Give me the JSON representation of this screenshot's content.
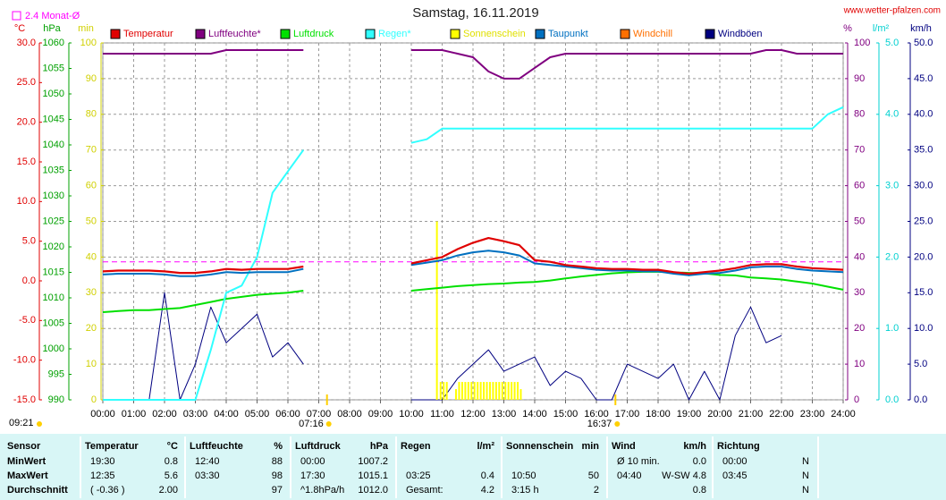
{
  "chart_data": {
    "type": "line",
    "title": "Samstag, 16.11.2019",
    "source": "www.wetter-pfalzen.com",
    "grid": true,
    "monthly_average": {
      "label": "2.4 Monat-Ø",
      "value": 2.4,
      "color": "#ff00ff"
    },
    "update": "09:21",
    "events": [
      {
        "x": 7.2667,
        "label": "07:16"
      },
      {
        "x": 16.6167,
        "label": "16:37"
      }
    ],
    "xlim": [
      0,
      24
    ],
    "xticks": [
      {
        "value": 0,
        "label": "00:00"
      },
      {
        "value": 1,
        "label": "01:00"
      },
      {
        "value": 2,
        "label": "02:00"
      },
      {
        "value": 3,
        "label": "03:00"
      },
      {
        "value": 4,
        "label": "04:00"
      },
      {
        "value": 5,
        "label": "05:00"
      },
      {
        "value": 6,
        "label": "06:00"
      },
      {
        "value": 7,
        "label": "07:00"
      },
      {
        "value": 8,
        "label": "08:00"
      },
      {
        "value": 9,
        "label": "09:00"
      },
      {
        "value": 10,
        "label": "10:00"
      },
      {
        "value": 11,
        "label": "11:00"
      },
      {
        "value": 12,
        "label": "12:00"
      },
      {
        "value": 13,
        "label": "13:00"
      },
      {
        "value": 14,
        "label": "14:00"
      },
      {
        "value": 15,
        "label": "15:00"
      },
      {
        "value": 16,
        "label": "16:00"
      },
      {
        "value": 17,
        "label": "17:00"
      },
      {
        "value": 18,
        "label": "18:00"
      },
      {
        "value": 19,
        "label": "19:00"
      },
      {
        "value": 20,
        "label": "20:00"
      },
      {
        "value": 21,
        "label": "21:00"
      },
      {
        "value": 22,
        "label": "22:00"
      },
      {
        "value": 23,
        "label": "23:00"
      },
      {
        "value": 24,
        "label": "24:00"
      }
    ],
    "axes": [
      {
        "unit": "°C",
        "color": "#e00000",
        "lim": [
          -15,
          30
        ],
        "ticks": [
          {
            "value": 30,
            "label": "30.0"
          },
          {
            "value": 25,
            "label": "25.0"
          },
          {
            "value": 20,
            "label": "20.0"
          },
          {
            "value": 15,
            "label": "15.0"
          },
          {
            "value": 10,
            "label": "10.0"
          },
          {
            "value": 5,
            "label": "5.0"
          },
          {
            "value": 0,
            "label": "0.0"
          },
          {
            "value": -5,
            "label": "-5.0"
          },
          {
            "value": -10,
            "label": "-10.0"
          },
          {
            "value": -15,
            "label": "-15.0"
          }
        ]
      },
      {
        "unit": "hPa",
        "color": "#00a000",
        "lim": [
          990,
          1060
        ],
        "ticks": [
          1060,
          1055,
          1050,
          1045,
          1040,
          1035,
          1030,
          1025,
          1020,
          1015,
          1010,
          1005,
          1000,
          995,
          990
        ]
      },
      {
        "unit": "min",
        "color": "#d0d000",
        "lim": [
          0,
          100
        ],
        "ticks": [
          100,
          90,
          80,
          70,
          60,
          50,
          40,
          30,
          20,
          10,
          0
        ]
      },
      {
        "unit": "%",
        "color": "#800080",
        "lim": [
          0,
          100
        ],
        "ticks": [
          100,
          90,
          80,
          70,
          60,
          50,
          40,
          30,
          20,
          10,
          0
        ]
      },
      {
        "unit": "l/m²",
        "color": "#00d0d0",
        "lim": [
          0,
          5
        ],
        "ticks": [
          {
            "value": 5,
            "label": "5.0"
          },
          {
            "value": 4,
            "label": "4.0"
          },
          {
            "value": 3,
            "label": "3.0"
          },
          {
            "value": 2,
            "label": "2.0"
          },
          {
            "value": 1,
            "label": "1.0"
          },
          {
            "value": 0,
            "label": "0.0"
          }
        ]
      },
      {
        "unit": "km/h",
        "color": "#000080",
        "lim": [
          0,
          50
        ],
        "ticks": [
          {
            "value": 50,
            "label": "50.0"
          },
          {
            "value": 45,
            "label": "45.0"
          },
          {
            "value": 40,
            "label": "40.0"
          },
          {
            "value": 35,
            "label": "35.0"
          },
          {
            "value": 30,
            "label": "30.0"
          },
          {
            "value": 25,
            "label": "25.0"
          },
          {
            "value": 20,
            "label": "20.0"
          },
          {
            "value": 15,
            "label": "15.0"
          },
          {
            "value": 10,
            "label": "10.0"
          },
          {
            "value": 5,
            "label": "5.0"
          },
          {
            "value": 0,
            "label": "0.0"
          }
        ]
      }
    ],
    "x": [
      0,
      0.5,
      1,
      1.5,
      2,
      2.5,
      3,
      3.5,
      4,
      4.5,
      5,
      5.5,
      6,
      6.5,
      7,
      7.5,
      8,
      8.5,
      9,
      9.5,
      10,
      10.5,
      11,
      11.5,
      12,
      12.5,
      13,
      13.5,
      14,
      14.5,
      15,
      15.5,
      16,
      16.5,
      17,
      17.5,
      18,
      18.5,
      19,
      19.5,
      20,
      20.5,
      21,
      21.5,
      22,
      22.5,
      23,
      23.5,
      24
    ],
    "series": [
      {
        "name": "Temperatur",
        "color": "#e00000",
        "axis": 0,
        "values": [
          1.2,
          1.3,
          1.3,
          1.3,
          1.2,
          1.0,
          1.0,
          1.2,
          1.5,
          1.4,
          1.5,
          1.5,
          1.5,
          1.8,
          null,
          null,
          null,
          null,
          null,
          null,
          2.2,
          2.6,
          3.0,
          4.0,
          4.8,
          5.4,
          5.0,
          4.5,
          2.6,
          2.4,
          2.0,
          1.8,
          1.6,
          1.5,
          1.5,
          1.4,
          1.4,
          1.1,
          0.9,
          1.1,
          1.3,
          1.6,
          2.0,
          2.1,
          2.1,
          1.8,
          1.6,
          1.5,
          1.4
        ]
      },
      {
        "name": "Luftfeuchte*",
        "color": "#800080",
        "axis": 3,
        "values": [
          97,
          97,
          97,
          97,
          97,
          97,
          97,
          97,
          98,
          98,
          98,
          98,
          98,
          98,
          null,
          null,
          null,
          null,
          null,
          null,
          98,
          98,
          98,
          97,
          96,
          92,
          90,
          90,
          93,
          96,
          97,
          97,
          97,
          97,
          97,
          97,
          97,
          97,
          97,
          97,
          97,
          97,
          97,
          98,
          98,
          97,
          97,
          97,
          97
        ]
      },
      {
        "name": "Luftdruck",
        "color": "#00e000",
        "axis": 1,
        "values": [
          1007.2,
          1007.4,
          1007.6,
          1007.6,
          1007.8,
          1008.0,
          1008.6,
          1009.2,
          1009.8,
          1010.2,
          1010.6,
          1010.8,
          1011.0,
          1011.4,
          null,
          null,
          null,
          null,
          null,
          null,
          1011.4,
          1011.7,
          1012.0,
          1012.3,
          1012.5,
          1012.7,
          1012.8,
          1013.0,
          1013.1,
          1013.4,
          1013.8,
          1014.2,
          1014.5,
          1014.8,
          1015.0,
          1015.1,
          1015.1,
          1015.0,
          1014.9,
          1014.8,
          1014.5,
          1014.4,
          1014.0,
          1013.8,
          1013.6,
          1013.2,
          1012.8,
          1012.2,
          1011.6
        ]
      },
      {
        "name": "Regen*",
        "color": "#30ffff",
        "axis": 4,
        "values": [
          0,
          0,
          0,
          0,
          0,
          0,
          0,
          0.7,
          1.5,
          1.6,
          2.0,
          2.9,
          3.2,
          3.5,
          null,
          null,
          null,
          null,
          null,
          null,
          3.6,
          3.65,
          3.8,
          3.8,
          3.8,
          3.8,
          3.8,
          3.8,
          3.8,
          3.8,
          3.8,
          3.8,
          3.8,
          3.8,
          3.8,
          3.8,
          3.8,
          3.8,
          3.8,
          3.8,
          3.8,
          3.8,
          3.8,
          3.8,
          3.8,
          3.8,
          3.8,
          4.0,
          4.1
        ]
      },
      {
        "name": "Sonnenschein",
        "color": "#ffff00",
        "axis": 2,
        "kind": "bar",
        "x": [
          10.83,
          10.95,
          11.05,
          11.15,
          11.45,
          11.55,
          11.65,
          11.75,
          11.85,
          11.95,
          12.05,
          12.15,
          12.25,
          12.35,
          12.45,
          12.55,
          12.65,
          12.75,
          12.85,
          12.95,
          13.05,
          13.15,
          13.25,
          13.35,
          13.45,
          13.55
        ],
        "values": [
          50,
          5,
          5,
          5,
          3,
          5,
          5,
          5,
          5,
          5,
          5,
          5,
          5,
          5,
          5,
          5,
          5,
          5,
          5,
          5,
          5,
          5,
          5,
          5,
          5,
          3
        ]
      },
      {
        "name": "Taupunkt",
        "color": "#0070c0",
        "axis": 0,
        "values": [
          0.8,
          0.9,
          0.9,
          0.9,
          0.8,
          0.6,
          0.6,
          0.8,
          1.1,
          1.0,
          1.1,
          1.1,
          1.1,
          1.5,
          null,
          null,
          null,
          null,
          null,
          null,
          2.0,
          2.3,
          2.6,
          3.2,
          3.6,
          3.8,
          3.6,
          3.2,
          2.2,
          2.0,
          1.8,
          1.6,
          1.4,
          1.3,
          1.3,
          1.2,
          1.2,
          0.9,
          0.7,
          0.9,
          1.0,
          1.3,
          1.7,
          1.8,
          1.8,
          1.5,
          1.3,
          1.2,
          1.1
        ]
      },
      {
        "name": "Windchill",
        "color": "#ff7000"
      },
      {
        "name": "Windböen",
        "color": "#000080",
        "axis": 5,
        "values": [
          0,
          0,
          0,
          0,
          15,
          0,
          5,
          13,
          8,
          10,
          12,
          6,
          8,
          5,
          null,
          null,
          null,
          null,
          null,
          null,
          0,
          0,
          0,
          3,
          5,
          7,
          4,
          5,
          6,
          2,
          4,
          3,
          0,
          0,
          5,
          4,
          3,
          5,
          0,
          4,
          0,
          9,
          13,
          8,
          9,
          null,
          null,
          null,
          null
        ]
      }
    ]
  },
  "table": {
    "header": [
      "Sensor",
      "Temperatur",
      "°C",
      "Luftfeuchte",
      "%",
      "Luftdruck",
      "hPa",
      "Regen",
      "l/m²",
      "Sonnenschein",
      "min",
      "Wind",
      "km/h",
      "Richtung",
      null
    ],
    "rows": [
      [
        "MinWert",
        "19:30",
        "0.8",
        "12:40",
        "88",
        "00:00",
        "1007.2",
        null,
        null,
        null,
        null,
        "Ø 10 min.",
        "0.0",
        "00:00",
        "N"
      ],
      [
        "MaxWert",
        "12:35",
        "5.6",
        "03:30",
        "98",
        "17:30",
        "1015.1",
        "03:25",
        "0.4",
        "10:50",
        "50",
        "04:40",
        "W-SW 4.8",
        "03:45",
        "N"
      ],
      [
        "Durchschnitt",
        "( -0.36 )",
        "2.00",
        null,
        "97",
        "^1.8hPa/h",
        "1012.0",
        "Gesamt:",
        "4.2",
        "3:15 h",
        "2",
        null,
        "0.8",
        null,
        "N"
      ]
    ]
  }
}
